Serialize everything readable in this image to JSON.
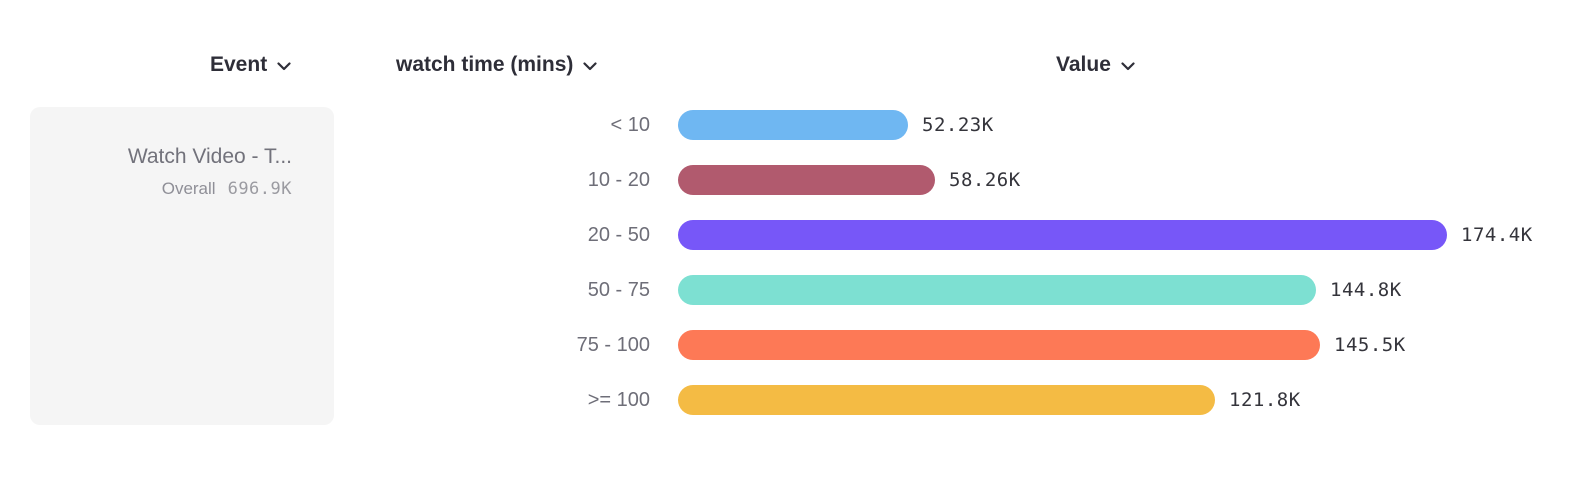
{
  "header": {
    "columns": [
      {
        "label": "Event"
      },
      {
        "label": "watch time (mins)"
      },
      {
        "label": "Value"
      }
    ]
  },
  "event_card": {
    "title": "Watch Video - T...",
    "overall_label": "Overall",
    "overall_value": "696.9K"
  },
  "chart_data": {
    "type": "bar",
    "orientation": "horizontal",
    "title": "",
    "xlabel": "Value",
    "ylabel": "watch time (mins)",
    "categories": [
      "< 10",
      "10 - 20",
      "20 - 50",
      "50 - 75",
      "75 - 100",
      ">= 100"
    ],
    "values": [
      52230,
      58260,
      174400,
      144800,
      145500,
      121800
    ],
    "display_values": [
      "52.23K",
      "58.26K",
      "174.4K",
      "144.8K",
      "145.5K",
      "121.8K"
    ],
    "colors": [
      "#6fb7f2",
      "#b15a6e",
      "#7757f8",
      "#7de0d2",
      "#fd7956",
      "#f4bb44"
    ],
    "xlim": [
      0,
      174400
    ],
    "grid": false,
    "legend": false,
    "overall_total_display": "696.9K"
  },
  "colors": {
    "card_background": "#f5f5f5",
    "header_text": "#2e2e38",
    "row_label_text": "#6e6e78",
    "value_text": "#34343b",
    "card_title_text": "#72727b"
  }
}
